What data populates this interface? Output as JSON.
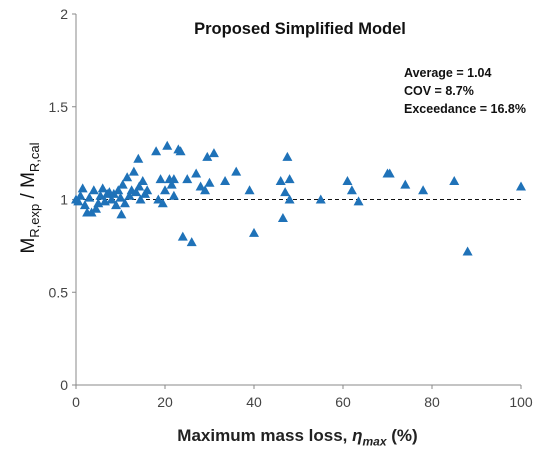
{
  "chart_data": {
    "type": "scatter",
    "title": "Proposed Simplified Model",
    "xlabel": {
      "main": "Maximum mass loss, ",
      "symbol": "η",
      "sub": "max",
      "unit": " (%)"
    },
    "ylabel": {
      "a": "M",
      "a_sub": "R,exp",
      "sep": " / ",
      "b": "M",
      "b_sub": "R,cal"
    },
    "xlim": [
      0,
      100
    ],
    "ylim": [
      0,
      2
    ],
    "xticks": [
      "0",
      "20",
      "40",
      "60",
      "80",
      "100"
    ],
    "yticks": [
      "0",
      "0.5",
      "1",
      "1.5",
      "2"
    ],
    "reference_line": {
      "y": 1,
      "style": "dashed"
    },
    "annotations": [
      "Average = 1.04",
      "COV = 8.7%",
      "Exceedance = 16.8%"
    ],
    "marker": {
      "shape": "triangle-up",
      "color": "#1f72b8"
    },
    "points": [
      [
        0,
        1.0
      ],
      [
        0.5,
        0.99
      ],
      [
        1,
        1.02
      ],
      [
        1.5,
        1.06
      ],
      [
        2,
        0.97
      ],
      [
        2.5,
        0.93
      ],
      [
        3,
        1.01
      ],
      [
        3.5,
        0.93
      ],
      [
        4,
        1.05
      ],
      [
        4.5,
        0.95
      ],
      [
        5,
        0.98
      ],
      [
        5.5,
        1.02
      ],
      [
        6,
        1.06
      ],
      [
        6.5,
        0.99
      ],
      [
        7,
        1.03
      ],
      [
        7.5,
        1.04
      ],
      [
        8,
        1.0
      ],
      [
        8.5,
        1.03
      ],
      [
        9,
        0.97
      ],
      [
        9.5,
        1.05
      ],
      [
        10,
        1.01
      ],
      [
        10.2,
        0.92
      ],
      [
        10.5,
        1.08
      ],
      [
        11,
        0.98
      ],
      [
        11.5,
        1.12
      ],
      [
        12,
        1.02
      ],
      [
        12.5,
        1.05
      ],
      [
        13,
        1.15
      ],
      [
        13.5,
        1.04
      ],
      [
        14,
        1.22
      ],
      [
        14.2,
        1.07
      ],
      [
        14.5,
        1.0
      ],
      [
        15,
        1.1
      ],
      [
        15.5,
        1.03
      ],
      [
        16,
        1.05
      ],
      [
        18,
        1.26
      ],
      [
        18.5,
        1.0
      ],
      [
        19,
        1.11
      ],
      [
        19.5,
        0.98
      ],
      [
        20,
        1.05
      ],
      [
        20.5,
        1.29
      ],
      [
        21,
        1.11
      ],
      [
        21.5,
        1.08
      ],
      [
        22,
        1.02
      ],
      [
        22,
        1.11
      ],
      [
        23,
        1.27
      ],
      [
        23.5,
        1.26
      ],
      [
        24,
        0.8
      ],
      [
        25,
        1.11
      ],
      [
        26,
        0.77
      ],
      [
        27,
        1.14
      ],
      [
        28,
        1.07
      ],
      [
        29,
        1.05
      ],
      [
        29.5,
        1.23
      ],
      [
        30,
        1.09
      ],
      [
        31,
        1.25
      ],
      [
        33.5,
        1.1
      ],
      [
        36,
        1.15
      ],
      [
        39,
        1.05
      ],
      [
        40,
        0.82
      ],
      [
        46,
        1.1
      ],
      [
        46.5,
        0.9
      ],
      [
        47,
        1.04
      ],
      [
        47.5,
        1.23
      ],
      [
        48,
        1.0
      ],
      [
        48,
        1.11
      ],
      [
        55,
        1.0
      ],
      [
        61,
        1.1
      ],
      [
        62,
        1.05
      ],
      [
        63.5,
        0.99
      ],
      [
        70,
        1.14
      ],
      [
        70.5,
        1.14
      ],
      [
        74,
        1.08
      ],
      [
        78,
        1.05
      ],
      [
        85,
        1.1
      ],
      [
        88,
        0.72
      ],
      [
        100,
        1.07
      ]
    ]
  }
}
